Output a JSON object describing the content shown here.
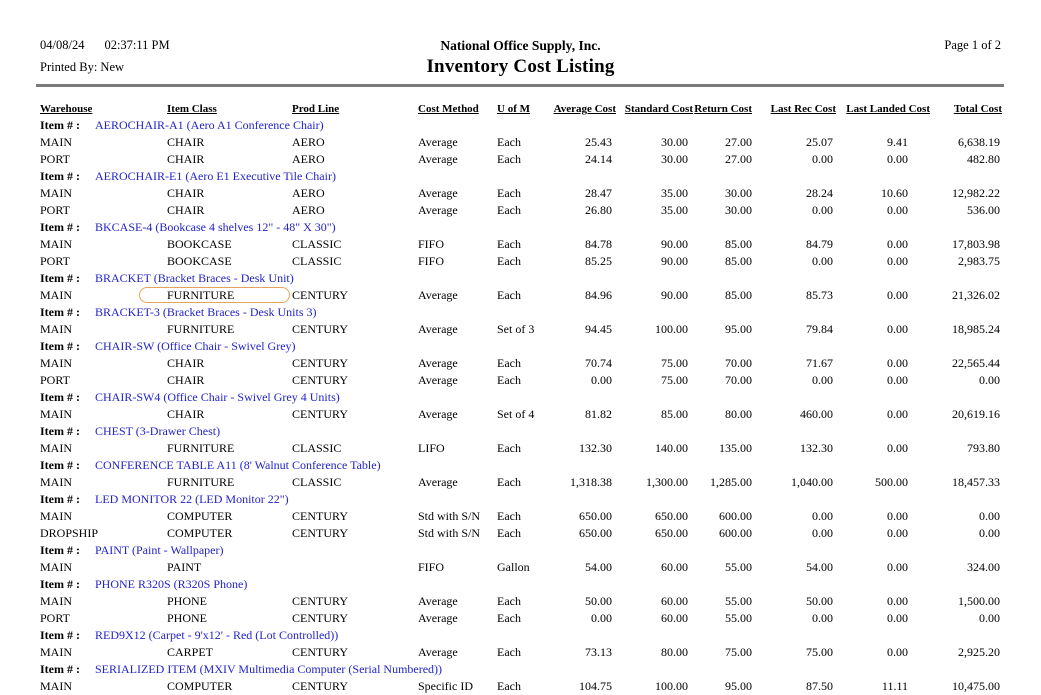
{
  "report": {
    "date": "04/08/24",
    "time": "02:37:11 PM",
    "printed_by": "Printed By: New",
    "company": "National Office Supply, Inc.",
    "title": "Inventory Cost Listing",
    "page_label": "Page 1 of  2"
  },
  "colors": {
    "item_link": "#2323cb",
    "highlight_ring": "#e2a45a",
    "rule": "#7a7a7a",
    "text": "#000000",
    "background": "#ffffff"
  },
  "table": {
    "item_label": "Item # :",
    "columns": [
      "Warehouse",
      "Item Class",
      "Prod Line",
      "Cost Method",
      "U of M",
      "Average Cost",
      "Standard Cost",
      "Return Cost",
      "Last Rec Cost",
      "Last Landed Cost",
      "Total Cost"
    ],
    "groups": [
      {
        "item": "AEROCHAIR-A1 (Aero A1 Conference Chair)",
        "rows": [
          {
            "warehouse": "MAIN",
            "item_class": "CHAIR",
            "prod_line": "AERO",
            "cost_method": "Average",
            "uom": "Each",
            "average_cost": "25.43",
            "standard_cost": "30.00",
            "return_cost": "27.00",
            "last_rec_cost": "25.07",
            "last_landed_cost": "9.41",
            "total_cost": "6,638.19"
          },
          {
            "warehouse": "PORT",
            "item_class": "CHAIR",
            "prod_line": "AERO",
            "cost_method": "Average",
            "uom": "Each",
            "average_cost": "24.14",
            "standard_cost": "30.00",
            "return_cost": "27.00",
            "last_rec_cost": "0.00",
            "last_landed_cost": "0.00",
            "total_cost": "482.80"
          }
        ]
      },
      {
        "item": "AEROCHAIR-E1 (Aero E1 Executive Tile Chair)",
        "rows": [
          {
            "warehouse": "MAIN",
            "item_class": "CHAIR",
            "prod_line": "AERO",
            "cost_method": "Average",
            "uom": "Each",
            "average_cost": "28.47",
            "standard_cost": "35.00",
            "return_cost": "30.00",
            "last_rec_cost": "28.24",
            "last_landed_cost": "10.60",
            "total_cost": "12,982.22"
          },
          {
            "warehouse": "PORT",
            "item_class": "CHAIR",
            "prod_line": "AERO",
            "cost_method": "Average",
            "uom": "Each",
            "average_cost": "26.80",
            "standard_cost": "35.00",
            "return_cost": "30.00",
            "last_rec_cost": "0.00",
            "last_landed_cost": "0.00",
            "total_cost": "536.00"
          }
        ]
      },
      {
        "item": "BKCASE-4 (Bookcase 4 shelves 12\" - 48\" X 30\")",
        "rows": [
          {
            "warehouse": "MAIN",
            "item_class": "BOOKCASE",
            "prod_line": "CLASSIC",
            "cost_method": "FIFO",
            "uom": "Each",
            "average_cost": "84.78",
            "standard_cost": "90.00",
            "return_cost": "85.00",
            "last_rec_cost": "84.79",
            "last_landed_cost": "0.00",
            "total_cost": "17,803.98"
          },
          {
            "warehouse": "PORT",
            "item_class": "BOOKCASE",
            "prod_line": "CLASSIC",
            "cost_method": "FIFO",
            "uom": "Each",
            "average_cost": "85.25",
            "standard_cost": "90.00",
            "return_cost": "85.00",
            "last_rec_cost": "0.00",
            "last_landed_cost": "0.00",
            "total_cost": "2,983.75"
          }
        ]
      },
      {
        "item": "BRACKET (Bracket Braces - Desk Unit)",
        "rows": [
          {
            "warehouse": "MAIN",
            "item_class": "FURNITURE",
            "prod_line": "CENTURY",
            "cost_method": "Average",
            "uom": "Each",
            "average_cost": "84.96",
            "standard_cost": "90.00",
            "return_cost": "85.00",
            "last_rec_cost": "85.73",
            "last_landed_cost": "0.00",
            "total_cost": "21,326.02",
            "highlight": true
          }
        ]
      },
      {
        "item": "BRACKET-3 (Bracket Braces - Desk Units 3)",
        "rows": [
          {
            "warehouse": "MAIN",
            "item_class": "FURNITURE",
            "prod_line": "CENTURY",
            "cost_method": "Average",
            "uom": "Set of 3",
            "average_cost": "94.45",
            "standard_cost": "100.00",
            "return_cost": "95.00",
            "last_rec_cost": "79.84",
            "last_landed_cost": "0.00",
            "total_cost": "18,985.24"
          }
        ]
      },
      {
        "item": "CHAIR-SW (Office Chair - Swivel Grey)",
        "rows": [
          {
            "warehouse": "MAIN",
            "item_class": "CHAIR",
            "prod_line": "CENTURY",
            "cost_method": "Average",
            "uom": "Each",
            "average_cost": "70.74",
            "standard_cost": "75.00",
            "return_cost": "70.00",
            "last_rec_cost": "71.67",
            "last_landed_cost": "0.00",
            "total_cost": "22,565.44"
          },
          {
            "warehouse": "PORT",
            "item_class": "CHAIR",
            "prod_line": "CENTURY",
            "cost_method": "Average",
            "uom": "Each",
            "average_cost": "0.00",
            "standard_cost": "75.00",
            "return_cost": "70.00",
            "last_rec_cost": "0.00",
            "last_landed_cost": "0.00",
            "total_cost": "0.00"
          }
        ]
      },
      {
        "item": "CHAIR-SW4 (Office Chair - Swivel Grey 4 Units)",
        "rows": [
          {
            "warehouse": "MAIN",
            "item_class": "CHAIR",
            "prod_line": "CENTURY",
            "cost_method": "Average",
            "uom": "Set of 4",
            "average_cost": "81.82",
            "standard_cost": "85.00",
            "return_cost": "80.00",
            "last_rec_cost": "460.00",
            "last_landed_cost": "0.00",
            "total_cost": "20,619.16"
          }
        ]
      },
      {
        "item": "CHEST (3-Drawer Chest)",
        "rows": [
          {
            "warehouse": "MAIN",
            "item_class": "FURNITURE",
            "prod_line": "CLASSIC",
            "cost_method": "LIFO",
            "uom": "Each",
            "average_cost": "132.30",
            "standard_cost": "140.00",
            "return_cost": "135.00",
            "last_rec_cost": "132.30",
            "last_landed_cost": "0.00",
            "total_cost": "793.80"
          }
        ]
      },
      {
        "item": "CONFERENCE TABLE A11 (8' Walnut Conference Table)",
        "rows": [
          {
            "warehouse": "MAIN",
            "item_class": "FURNITURE",
            "prod_line": "CLASSIC",
            "cost_method": "Average",
            "uom": "Each",
            "average_cost": "1,318.38",
            "standard_cost": "1,300.00",
            "return_cost": "1,285.00",
            "last_rec_cost": "1,040.00",
            "last_landed_cost": "500.00",
            "total_cost": "18,457.33"
          }
        ]
      },
      {
        "item": "LED MONITOR 22 (LED Monitor 22\")",
        "rows": [
          {
            "warehouse": "MAIN",
            "item_class": "COMPUTER",
            "prod_line": "CENTURY",
            "cost_method": "Std with S/N",
            "uom": "Each",
            "average_cost": "650.00",
            "standard_cost": "650.00",
            "return_cost": "600.00",
            "last_rec_cost": "0.00",
            "last_landed_cost": "0.00",
            "total_cost": "0.00"
          },
          {
            "warehouse": "DROPSHIP",
            "item_class": "COMPUTER",
            "prod_line": "CENTURY",
            "cost_method": "Std with S/N",
            "uom": "Each",
            "average_cost": "650.00",
            "standard_cost": "650.00",
            "return_cost": "600.00",
            "last_rec_cost": "0.00",
            "last_landed_cost": "0.00",
            "total_cost": "0.00"
          }
        ]
      },
      {
        "item": "PAINT (Paint - Wallpaper)",
        "rows": [
          {
            "warehouse": "MAIN",
            "item_class": "PAINT",
            "prod_line": "",
            "cost_method": "FIFO",
            "uom": "Gallon",
            "average_cost": "54.00",
            "standard_cost": "60.00",
            "return_cost": "55.00",
            "last_rec_cost": "54.00",
            "last_landed_cost": "0.00",
            "total_cost": "324.00"
          }
        ]
      },
      {
        "item": "PHONE R320S (R320S Phone)",
        "rows": [
          {
            "warehouse": "MAIN",
            "item_class": "PHONE",
            "prod_line": "CENTURY",
            "cost_method": "Average",
            "uom": "Each",
            "average_cost": "50.00",
            "standard_cost": "60.00",
            "return_cost": "55.00",
            "last_rec_cost": "50.00",
            "last_landed_cost": "0.00",
            "total_cost": "1,500.00"
          },
          {
            "warehouse": "PORT",
            "item_class": "PHONE",
            "prod_line": "CENTURY",
            "cost_method": "Average",
            "uom": "Each",
            "average_cost": "0.00",
            "standard_cost": "60.00",
            "return_cost": "55.00",
            "last_rec_cost": "0.00",
            "last_landed_cost": "0.00",
            "total_cost": "0.00"
          }
        ]
      },
      {
        "item": "RED9X12 (Carpet - 9'x12' - Red (Lot Controlled))",
        "rows": [
          {
            "warehouse": "MAIN",
            "item_class": "CARPET",
            "prod_line": "CENTURY",
            "cost_method": "Average",
            "uom": "Each",
            "average_cost": "73.13",
            "standard_cost": "80.00",
            "return_cost": "75.00",
            "last_rec_cost": "75.00",
            "last_landed_cost": "0.00",
            "total_cost": "2,925.20"
          }
        ]
      },
      {
        "item": "SERIALIZED ITEM (MXIV Multimedia Computer (Serial Numbered))",
        "rows": [
          {
            "warehouse": "MAIN",
            "item_class": "COMPUTER",
            "prod_line": "CENTURY",
            "cost_method": "Specific ID",
            "uom": "Each",
            "average_cost": "104.75",
            "standard_cost": "100.00",
            "return_cost": "95.00",
            "last_rec_cost": "87.50",
            "last_landed_cost": "11.11",
            "total_cost": "10,475.00"
          }
        ]
      }
    ]
  }
}
